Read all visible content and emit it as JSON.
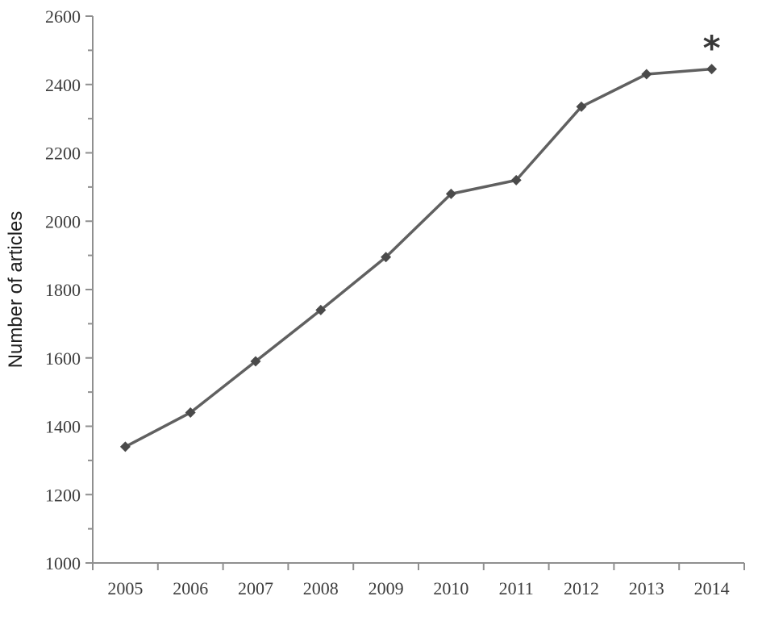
{
  "chart_data": {
    "type": "line",
    "title": "",
    "xlabel": "",
    "ylabel": "Number of articles",
    "categories": [
      "2005",
      "2006",
      "2007",
      "2008",
      "2009",
      "2010",
      "2011",
      "2012",
      "2013",
      "2014"
    ],
    "series": [
      {
        "name": "Number of articles",
        "values": [
          1340,
          1440,
          1590,
          1740,
          1895,
          2080,
          2120,
          2335,
          2430,
          2445
        ],
        "marker": "diamond"
      }
    ],
    "ylim": [
      1000,
      2600
    ],
    "ytick_step": 200,
    "yminor_tick_step": 100,
    "grid": false,
    "legend": "none",
    "annotations": [
      {
        "text": "*",
        "category": "2014",
        "value": 2525
      }
    ]
  },
  "colors": {
    "background": "#ffffff",
    "axis": "#8f8f8f",
    "tick_label": "#3d3d3d",
    "axis_title": "#1f1f1f",
    "line": "#606060",
    "marker": "#4a4a4a",
    "annotation": "#383838"
  }
}
